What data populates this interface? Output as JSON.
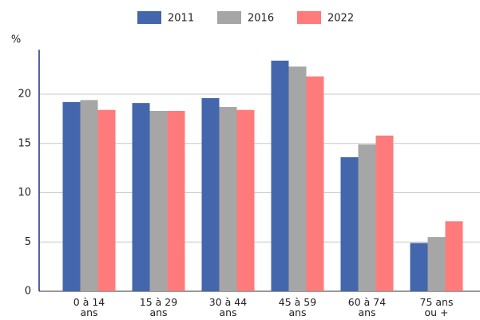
{
  "chart_data": {
    "type": "bar",
    "y_label": "%",
    "categories": [
      "0 à 14 ans",
      "15 à 29 ans",
      "30 à 44 ans",
      "45 à 59 ans",
      "60 à 74 ans",
      "75 ans ou +"
    ],
    "series": [
      {
        "name": "2011",
        "color": "#4466ac",
        "values": [
          19.2,
          19.1,
          19.6,
          23.4,
          13.6,
          4.9
        ]
      },
      {
        "name": "2016",
        "color": "#a6a6a6",
        "values": [
          19.4,
          18.3,
          18.7,
          22.8,
          14.9,
          5.5
        ]
      },
      {
        "name": "2022",
        "color": "#ff7b7b",
        "values": [
          18.4,
          18.3,
          18.4,
          21.8,
          15.8,
          7.1
        ]
      }
    ],
    "ylim": [
      0,
      24.5
    ],
    "yticks": [
      0,
      5,
      10,
      15,
      20
    ],
    "grid": true
  }
}
